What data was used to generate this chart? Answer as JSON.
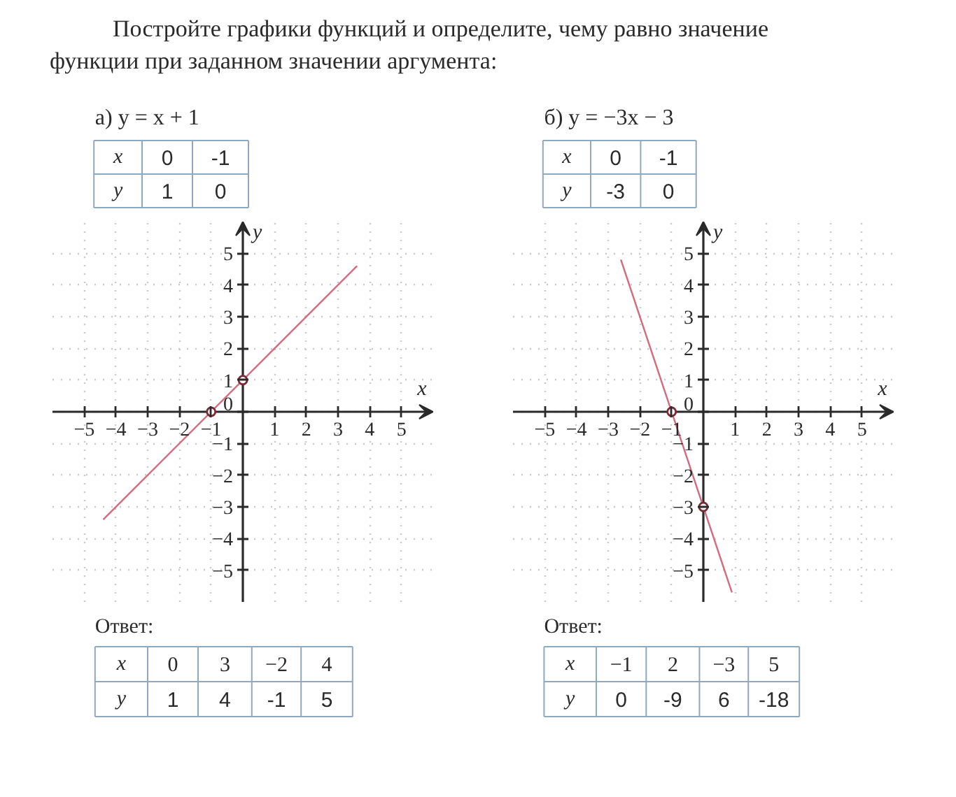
{
  "chart_data": [
    {
      "type": "line",
      "title": "Постройте графики функций и определите, чему равно значение функции при заданном значении аргумента:",
      "subtitle": "а) y = x + 1",
      "xlabel": "x",
      "ylabel": "y",
      "series": [
        {
          "color": "#d26a80",
          "x": [
            -4.4,
            3.6
          ],
          "values": [
            -3.4,
            4.6
          ]
        },
        {
          "type": "scatter",
          "color": "#7a2a36",
          "marker": "circle",
          "x": [
            0,
            -1
          ],
          "values": [
            1,
            0
          ]
        }
      ],
      "xlim": [
        -6,
        6
      ],
      "ylim": [
        -6,
        6
      ],
      "xticks": [
        {
          "value": -5,
          "label": "−5"
        },
        {
          "value": -4,
          "label": "−4"
        },
        {
          "value": -3,
          "label": "−3"
        },
        {
          "value": -2,
          "label": "−2"
        },
        {
          "value": -1,
          "label": "−1"
        },
        1,
        2,
        3,
        4,
        5
      ],
      "yticks": [
        {
          "value": -5,
          "label": "−5"
        },
        {
          "value": -4,
          "label": "−4"
        },
        {
          "value": -3,
          "label": "−3"
        },
        {
          "value": -2,
          "label": "−2"
        },
        {
          "value": -1,
          "label": "−1"
        },
        0,
        1,
        2,
        3,
        4,
        5
      ],
      "grid": true,
      "annotations": [
        "x",
        "0",
        "-1",
        "y",
        "1",
        "0",
        "Ответ:",
        "x",
        "0",
        "3",
        "−2",
        "4",
        "y",
        "1",
        "4",
        "-1",
        "5"
      ]
    },
    {
      "type": "line",
      "subtitle": "б) y = −3x − 3",
      "xlabel": "x",
      "ylabel": "y",
      "series": [
        {
          "color": "#d26a80",
          "x": [
            -2.6,
            0.9
          ],
          "values": [
            4.8,
            -5.7
          ]
        },
        {
          "type": "scatter",
          "color": "#7a2a36",
          "marker": "circle",
          "x": [
            0,
            -1
          ],
          "values": [
            -3,
            0
          ]
        }
      ],
      "xlim": [
        -6,
        6
      ],
      "ylim": [
        -6,
        6
      ],
      "xticks": [
        {
          "value": -5,
          "label": "−5"
        },
        {
          "value": -4,
          "label": "−4"
        },
        {
          "value": -3,
          "label": "−3"
        },
        {
          "value": -2,
          "label": "−2"
        },
        {
          "value": -1,
          "label": "−1"
        },
        1,
        2,
        3,
        4,
        5
      ],
      "yticks": [
        {
          "value": -5,
          "label": "−5"
        },
        {
          "value": -4,
          "label": "−4"
        },
        {
          "value": -3,
          "label": "−3"
        },
        {
          "value": -2,
          "label": "−2"
        },
        {
          "value": -1,
          "label": "−1"
        },
        0,
        1,
        2,
        3,
        4,
        5
      ],
      "grid": true,
      "annotations": [
        "x",
        "0",
        "-1",
        "y",
        "-3",
        "0",
        "Ответ:",
        "x",
        "−1",
        "2",
        "−3",
        "5",
        "y",
        "0",
        "-9",
        "6",
        "-18"
      ]
    }
  ]
}
